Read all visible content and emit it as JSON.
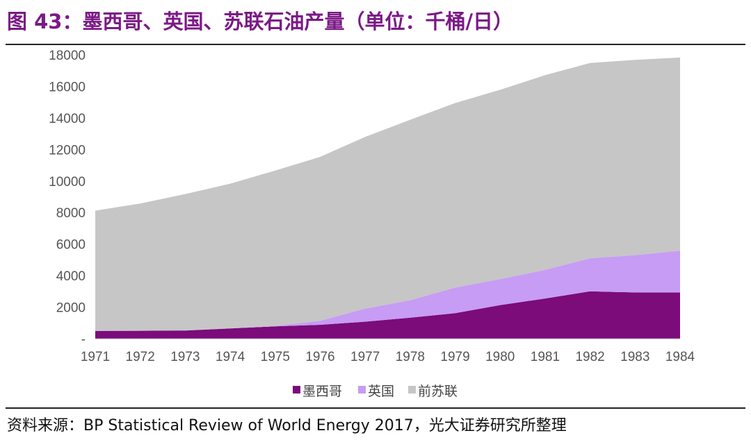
{
  "title_text": "图 43：墨西哥、英国、苏联石油产量（单位：千桶/日）",
  "source_text": "资料来源：BP Statistical Review of World Energy 2017，光大证券研究所整理",
  "colors": {
    "mexico": "#7b0c7a",
    "uk": "#c79cf4",
    "ussr": "#c6c6c6",
    "title": "#7b1a86"
  },
  "chart_data": {
    "type": "area",
    "stacked": true,
    "title": "墨西哥、英国、苏联石油产量（单位：千桶/日）",
    "xlabel": "",
    "ylabel": "",
    "ylim": [
      0,
      18000
    ],
    "yticks": [
      0,
      2000,
      4000,
      6000,
      8000,
      10000,
      12000,
      14000,
      16000,
      18000
    ],
    "ytick_labels": [
      "-",
      "2000",
      "4000",
      "6000",
      "8000",
      "10000",
      "12000",
      "14000",
      "16000",
      "18000"
    ],
    "grid": false,
    "legend_position": "bottom",
    "categories": [
      "1971",
      "1972",
      "1973",
      "1974",
      "1975",
      "1976",
      "1977",
      "1978",
      "1979",
      "1980",
      "1981",
      "1982",
      "1983",
      "1984"
    ],
    "series": [
      {
        "name": "墨西哥",
        "values": [
          490,
          500,
          520,
          650,
          780,
          880,
          1080,
          1330,
          1620,
          2130,
          2550,
          3000,
          2930,
          2930
        ]
      },
      {
        "name": "英国",
        "values": [
          10,
          10,
          10,
          10,
          30,
          250,
          830,
          1110,
          1620,
          1650,
          1810,
          2100,
          2370,
          2650
        ]
      },
      {
        "name": "前苏联",
        "values": [
          7620,
          8060,
          8640,
          9170,
          9850,
          10400,
          10890,
          11440,
          11700,
          12000,
          12350,
          12380,
          12380,
          12250
        ]
      }
    ]
  }
}
